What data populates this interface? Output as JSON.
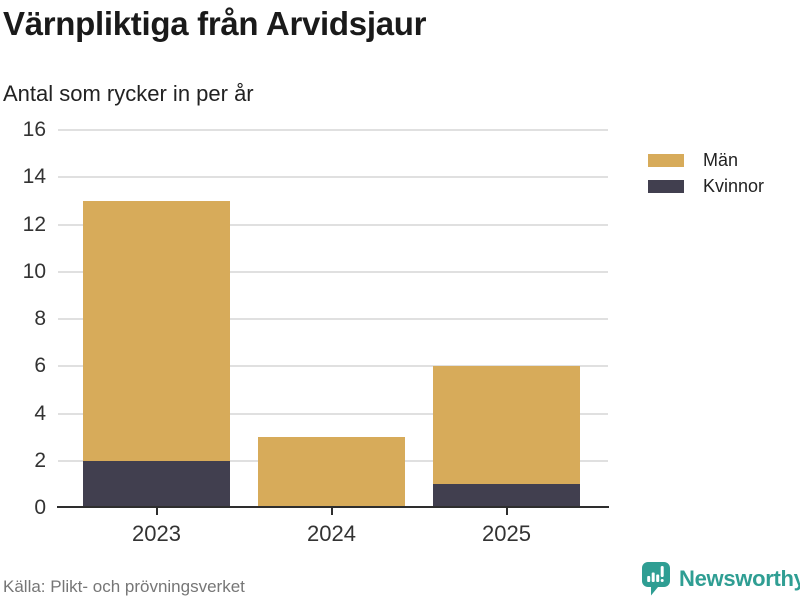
{
  "header": {
    "title": "Värnpliktiga från Arvidsjaur",
    "subtitle": "Antal som rycker in per år"
  },
  "chart_data": {
    "type": "bar",
    "stacked": true,
    "title": "Värnpliktiga från Arvidsjaur",
    "subtitle": "Antal som rycker in per år",
    "categories": [
      "2023",
      "2024",
      "2025"
    ],
    "series": [
      {
        "name": "Män",
        "color": "#d7ab5a",
        "values": [
          11,
          3,
          5
        ]
      },
      {
        "name": "Kvinnor",
        "color": "#413f4f",
        "values": [
          2,
          0,
          1
        ]
      }
    ],
    "totals": [
      13,
      3,
      6
    ],
    "stack_order_bottom_to_top": [
      "Kvinnor",
      "Män"
    ],
    "xlabel": "",
    "ylabel": "",
    "ylim": [
      0,
      16
    ],
    "yticks": [
      0,
      2,
      4,
      6,
      8,
      10,
      12,
      14,
      16
    ],
    "grid": true,
    "legend_position": "top-right"
  },
  "legend": {
    "items": [
      {
        "label": "Män",
        "color": "#d7ab5a"
      },
      {
        "label": "Kvinnor",
        "color": "#413f4f"
      }
    ]
  },
  "footer": {
    "source": "Källa: Plikt- och prövningsverket",
    "brand": "Newsworthy"
  },
  "colors": {
    "men_gold": "#d7ab5a",
    "women_navy": "#413f4f",
    "brand_teal": "#2f9e93",
    "gridline": "#e0e0e0",
    "axis": "#2e2e2e",
    "title_text": "#1a1a1a",
    "muted_text": "#767676"
  }
}
